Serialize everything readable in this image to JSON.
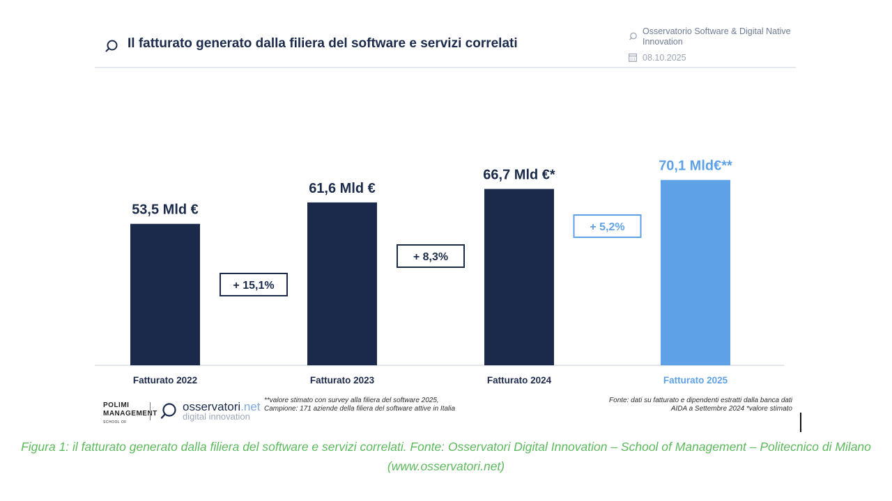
{
  "header": {
    "title": "Il fatturato generato dalla filiera del software e servizi correlati",
    "source_label": "Osservatorio Software & Digital Native Innovation",
    "date": "08.10.2025",
    "icons": [
      "magnifier-icon",
      "calendar-icon"
    ]
  },
  "colors": {
    "dark_navy": "#1b2a4a",
    "light_blue": "#5ea1e6",
    "caption_green": "#5cb85c"
  },
  "chart_data": {
    "type": "bar",
    "title": "Il fatturato generato dalla filiera del software e servizi correlati",
    "categories": [
      "Fatturato 2022",
      "Fatturato 2023",
      "Fatturato 2024",
      "Fatturato 2025"
    ],
    "values": [
      53.5,
      61.6,
      66.7,
      70.1
    ],
    "value_labels": [
      "53,5 Mld €",
      "61,6 Mld €",
      "66,7 Mld €*",
      "70,1 Mld€**"
    ],
    "bar_colors": [
      "#1b2a4a",
      "#1b2a4a",
      "#1b2a4a",
      "#5ea1e6"
    ],
    "growth_labels": [
      "+ 15,1%",
      "+ 8,3%",
      "+ 5,2%"
    ],
    "growth_colors": [
      "#1b2a4a",
      "#1b2a4a",
      "#5ea1e6"
    ],
    "unit": "Mld €",
    "grid": false,
    "legend": "none"
  },
  "footer": {
    "logo_polimi": "POLIMI MANAGEMENT",
    "logo_polimi_sub": "SCHOOL OF",
    "logo_oss_name": "osservatori",
    "logo_oss_net": ".net",
    "logo_oss_sub": "digital innovation",
    "note_left": "**valore stimato con survey alla filiera del software 2025, Campione: 171 aziende della filiera del software attive in Italia",
    "note_right": "Fonte: dati su fatturato e dipendenti estratti dalla banca dati AIDA a Settembre 2024 *valore stimato"
  },
  "caption": "Figura 1: il fatturato generato dalla filiera del software e servizi correlati. Fonte: Osservatori Digital Innovation – School of Management – Politecnico di Milano (www.osservatori.net)"
}
